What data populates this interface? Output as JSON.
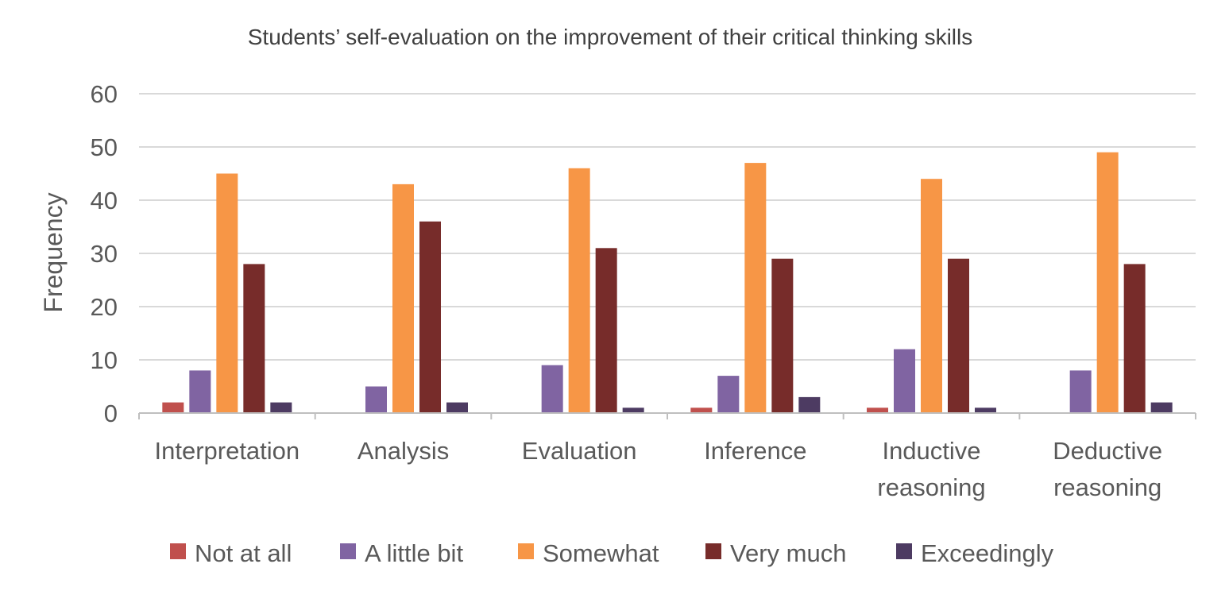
{
  "chart_data": {
    "type": "bar",
    "title": "Students’ self-evaluation on the improvement of their critical thinking skills",
    "xlabel": "",
    "ylabel": "Frequency",
    "ylim": [
      0,
      60
    ],
    "yticks": [
      0,
      10,
      20,
      30,
      40,
      50,
      60
    ],
    "grid": true,
    "legend_position": "bottom",
    "categories": [
      [
        "Interpretation"
      ],
      [
        "Analysis"
      ],
      [
        "Evaluation"
      ],
      [
        "Inference"
      ],
      [
        "Inductive",
        "reasoning"
      ],
      [
        "Deductive",
        "reasoning"
      ]
    ],
    "series": [
      {
        "name": "Not at all",
        "color": "#c0504d",
        "values": [
          2,
          0,
          0,
          1,
          1,
          0
        ]
      },
      {
        "name": "A little bit",
        "color": "#8064a2",
        "values": [
          8,
          5,
          9,
          7,
          12,
          8
        ]
      },
      {
        "name": "Somewhat",
        "color": "#f79646",
        "values": [
          45,
          43,
          46,
          47,
          44,
          49
        ]
      },
      {
        "name": "Very much",
        "color": "#772c2a",
        "values": [
          28,
          36,
          31,
          29,
          29,
          28
        ]
      },
      {
        "name": "Exceedingly",
        "color": "#4d3b62",
        "values": [
          2,
          2,
          1,
          3,
          1,
          2
        ]
      }
    ]
  }
}
